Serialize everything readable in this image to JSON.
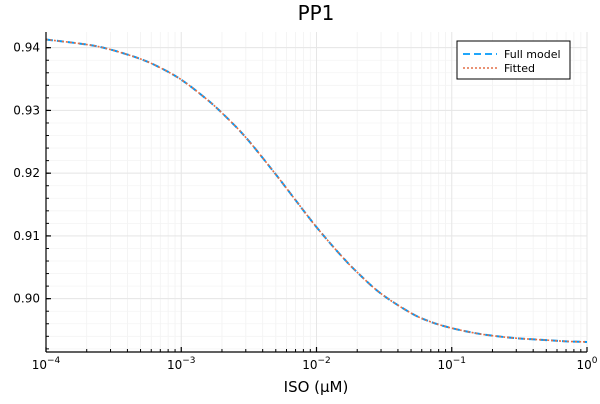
{
  "chart_data": {
    "type": "line",
    "title": "PP1",
    "xlabel": "ISO (μM)",
    "ylabel": "",
    "xscale": "log10",
    "xlim": [
      0.0001,
      1
    ],
    "ylim": [
      0.8915,
      0.9425
    ],
    "grid": true,
    "legend_position": "top-right",
    "x_ticks": [
      {
        "value": 0.0001,
        "base": "10",
        "exp": "−4"
      },
      {
        "value": 0.001,
        "base": "10",
        "exp": "−3"
      },
      {
        "value": 0.01,
        "base": "10",
        "exp": "−2"
      },
      {
        "value": 0.1,
        "base": "10",
        "exp": "−1"
      },
      {
        "value": 1,
        "base": "10",
        "exp": "0"
      }
    ],
    "y_ticks": [
      {
        "value": 0.9,
        "label": "0.90"
      },
      {
        "value": 0.91,
        "label": "0.91"
      },
      {
        "value": 0.92,
        "label": "0.92"
      },
      {
        "value": 0.93,
        "label": "0.93"
      },
      {
        "value": 0.94,
        "label": "0.94"
      }
    ],
    "x": [
      0.0001,
      0.0002,
      0.0003,
      0.0005,
      0.0007,
      0.001,
      0.0015,
      0.002,
      0.003,
      0.005,
      0.007,
      0.01,
      0.015,
      0.02,
      0.03,
      0.05,
      0.07,
      0.1,
      0.15,
      0.2,
      0.3,
      0.5,
      0.7,
      1.0
    ],
    "series": [
      {
        "name": "Full model",
        "color": "#009af9",
        "style": "dashed",
        "values": [
          0.9413,
          0.9405,
          0.9397,
          0.9382,
          0.9368,
          0.9349,
          0.932,
          0.9296,
          0.9257,
          0.9198,
          0.9157,
          0.9114,
          0.907,
          0.9042,
          0.9008,
          0.8977,
          0.8963,
          0.8953,
          0.8945,
          0.8941,
          0.8937,
          0.8934,
          0.8932,
          0.8931
        ]
      },
      {
        "name": "Fitted",
        "color": "#e26f46",
        "style": "dotted",
        "values": [
          0.9413,
          0.9405,
          0.9397,
          0.9382,
          0.9368,
          0.9349,
          0.932,
          0.9296,
          0.9257,
          0.9198,
          0.9157,
          0.9114,
          0.907,
          0.9042,
          0.9008,
          0.8977,
          0.8963,
          0.8953,
          0.8945,
          0.8941,
          0.8937,
          0.8934,
          0.8932,
          0.8931
        ]
      }
    ]
  },
  "legend": {
    "items": [
      {
        "label": "Full model"
      },
      {
        "label": "Fitted"
      }
    ]
  }
}
